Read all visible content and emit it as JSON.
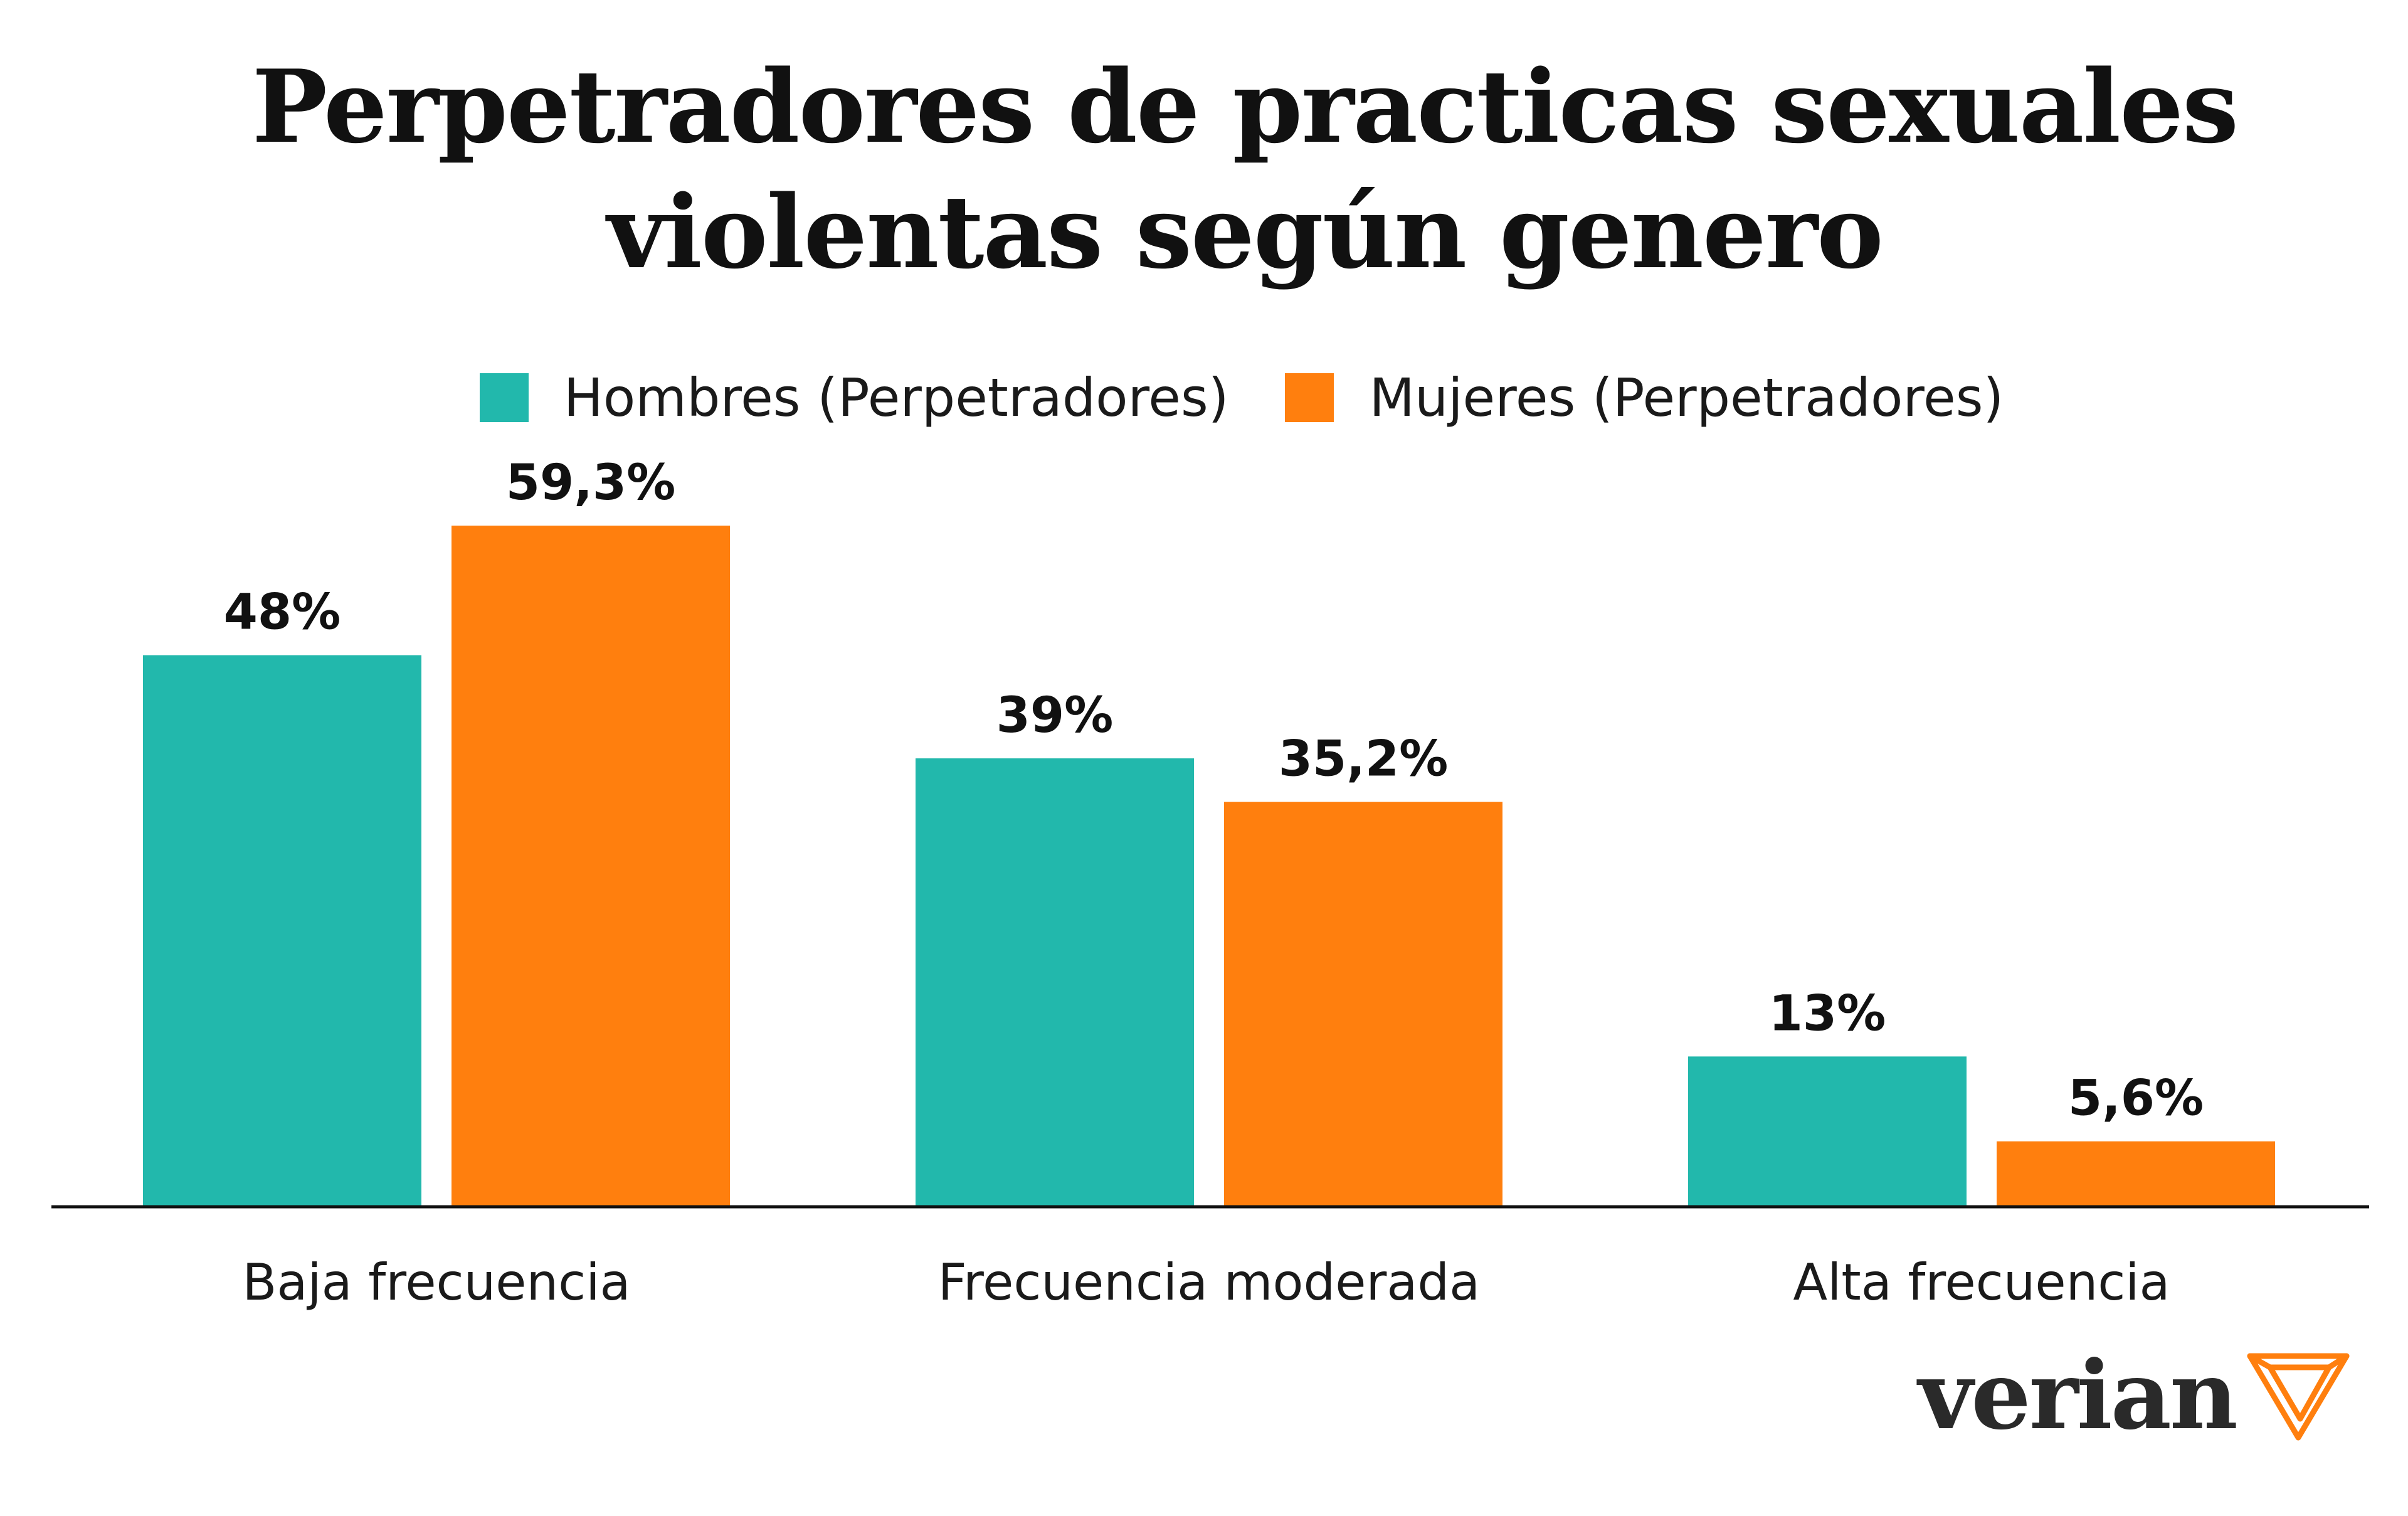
{
  "title_line1": "Perpetradores de practicas sexuales",
  "title_line2": "violentas según genero",
  "brand": {
    "name": "verian",
    "logo_icon": "verian-triangle-logo"
  },
  "colors": {
    "hombres": "#22B8AC",
    "mujeres": "#FF7F0E",
    "axis": "#111111"
  },
  "chart_data": {
    "type": "bar",
    "categories": [
      "Baja frecuencia",
      "Frecuencia moderada",
      "Alta frecuencia"
    ],
    "series": [
      {
        "name": "Hombres (Perpetradores)",
        "values": [
          48,
          39,
          13
        ],
        "labels": [
          "48%",
          "39%",
          "13%"
        ]
      },
      {
        "name": "Mujeres (Perpetradores)",
        "values": [
          59.3,
          35.2,
          5.6
        ],
        "labels": [
          "59,3%",
          "35,2%",
          "5,6%"
        ]
      }
    ],
    "ylim": [
      0,
      60
    ],
    "grid": false,
    "legend_position": "top-center"
  }
}
